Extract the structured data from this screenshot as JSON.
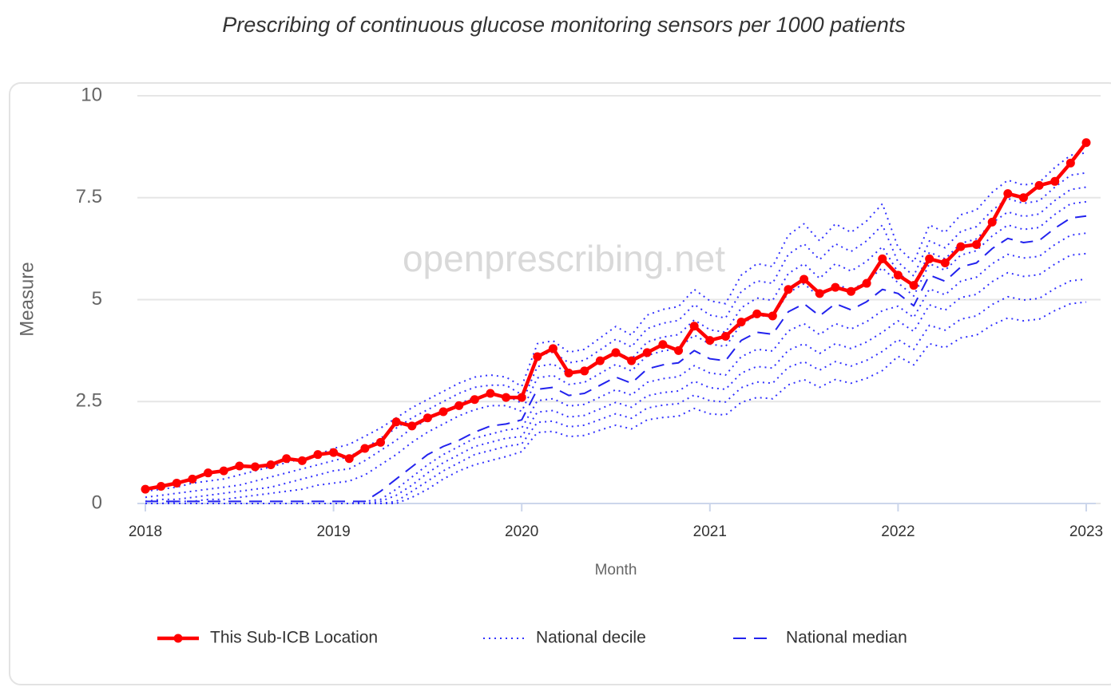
{
  "chart_data": {
    "type": "line",
    "title": "Prescribing of continuous glucose monitoring sensors per 1000 patients",
    "watermark": "openprescribing.net",
    "x_label": "Month",
    "y_label": "Measure",
    "x": [
      "2018-01",
      "2018-02",
      "2018-03",
      "2018-04",
      "2018-05",
      "2018-06",
      "2018-07",
      "2018-08",
      "2018-09",
      "2018-10",
      "2018-11",
      "2018-12",
      "2019-01",
      "2019-02",
      "2019-03",
      "2019-04",
      "2019-05",
      "2019-06",
      "2019-07",
      "2019-08",
      "2019-09",
      "2019-10",
      "2019-11",
      "2019-12",
      "2020-01",
      "2020-02",
      "2020-03",
      "2020-04",
      "2020-05",
      "2020-06",
      "2020-07",
      "2020-08",
      "2020-09",
      "2020-10",
      "2020-11",
      "2020-12",
      "2021-01",
      "2021-02",
      "2021-03",
      "2021-04",
      "2021-05",
      "2021-06",
      "2021-07",
      "2021-08",
      "2021-09",
      "2021-10",
      "2021-11",
      "2021-12",
      "2022-01",
      "2022-02",
      "2022-03",
      "2022-04",
      "2022-05",
      "2022-06",
      "2022-07",
      "2022-08",
      "2022-09",
      "2022-10",
      "2022-11",
      "2022-12",
      "2023-01"
    ],
    "xticks": [
      {
        "value": "2018-01",
        "label": "2018"
      },
      {
        "value": "2019-01",
        "label": "2019"
      },
      {
        "value": "2020-01",
        "label": "2020"
      },
      {
        "value": "2021-01",
        "label": "2021"
      },
      {
        "value": "2022-01",
        "label": "2022"
      },
      {
        "value": "2023-01",
        "label": "2023"
      }
    ],
    "ylim": [
      0,
      10
    ],
    "yticks": [
      0,
      {
        "value": 2.5,
        "label": "2.5"
      },
      5,
      {
        "value": 7.5,
        "label": "7.5"
      },
      10
    ],
    "grid": true,
    "legend": "bottom",
    "series": [
      {
        "name": "This Sub-ICB Location",
        "color": "#ff0000",
        "style": "solid",
        "markers": true,
        "values": [
          0.35,
          0.42,
          0.5,
          0.6,
          0.75,
          0.8,
          0.92,
          0.9,
          0.95,
          1.1,
          1.05,
          1.2,
          1.25,
          1.1,
          1.35,
          1.5,
          2.0,
          1.9,
          2.1,
          2.25,
          2.4,
          2.55,
          2.7,
          2.6,
          2.6,
          3.6,
          3.8,
          3.2,
          3.25,
          3.5,
          3.7,
          3.5,
          3.7,
          3.9,
          3.75,
          4.35,
          4.0,
          4.1,
          4.45,
          4.65,
          4.6,
          5.25,
          5.5,
          5.15,
          5.3,
          5.2,
          5.4,
          6.0,
          5.6,
          5.35,
          6.0,
          5.9,
          6.3,
          6.35,
          6.9,
          7.6,
          7.5,
          7.8,
          7.9,
          8.35,
          8.85
        ]
      },
      {
        "name": "National decile",
        "color": "#3333ff",
        "style": "dotted",
        "values": [
          0,
          0,
          0,
          0,
          0,
          0,
          0,
          0,
          0,
          0,
          0,
          0,
          0,
          0,
          0,
          0,
          0,
          0.15,
          0.35,
          0.6,
          0.8,
          0.95,
          1.05,
          1.15,
          1.27,
          1.74,
          1.77,
          1.64,
          1.67,
          1.8,
          1.92,
          1.83,
          2.05,
          2.11,
          2.14,
          2.33,
          2.2,
          2.17,
          2.48,
          2.6,
          2.57,
          2.91,
          3.04,
          2.85,
          3.04,
          2.95,
          3.07,
          3.26,
          3.61,
          3.4,
          3.92,
          3.82,
          4.06,
          4.13,
          4.38,
          4.55,
          4.48,
          4.52,
          4.73,
          4.9,
          4.94
        ]
      },
      {
        "name": "National decile",
        "color": "#3333ff",
        "style": "dotted",
        "values": [
          0,
          0,
          0,
          0,
          0,
          0,
          0,
          0,
          0,
          0,
          0,
          0,
          0,
          0,
          0,
          0,
          0.05,
          0.3,
          0.55,
          0.8,
          1.0,
          1.2,
          1.3,
          1.4,
          1.46,
          1.99,
          2.02,
          1.88,
          1.92,
          2.06,
          2.2,
          2.09,
          2.34,
          2.41,
          2.45,
          2.66,
          2.52,
          2.49,
          2.84,
          2.98,
          2.95,
          3.34,
          3.48,
          3.27,
          3.48,
          3.37,
          3.51,
          3.73,
          4.02,
          3.78,
          4.37,
          4.25,
          4.52,
          4.6,
          4.88,
          5.07,
          4.99,
          5.03,
          5.27,
          5.46,
          5.5
        ]
      },
      {
        "name": "National decile",
        "color": "#3333ff",
        "style": "dotted",
        "values": [
          0,
          0,
          0,
          0,
          0,
          0,
          0,
          0,
          0,
          0,
          0,
          0,
          0,
          0,
          0,
          0.05,
          0.2,
          0.45,
          0.75,
          1.0,
          1.2,
          1.4,
          1.5,
          1.6,
          1.64,
          2.24,
          2.28,
          2.12,
          2.16,
          2.32,
          2.48,
          2.36,
          2.64,
          2.72,
          2.76,
          3.0,
          2.84,
          2.8,
          3.2,
          3.36,
          3.32,
          3.76,
          3.92,
          3.68,
          3.92,
          3.8,
          3.96,
          4.2,
          4.48,
          4.22,
          4.87,
          4.74,
          5.05,
          5.13,
          5.44,
          5.66,
          5.57,
          5.61,
          5.87,
          6.09,
          6.13
        ]
      },
      {
        "name": "National decile",
        "color": "#3333ff",
        "style": "dotted",
        "values": [
          0,
          0,
          0,
          0,
          0,
          0,
          0,
          0,
          0,
          0,
          0,
          0,
          0,
          0,
          0.05,
          0.1,
          0.35,
          0.65,
          0.95,
          1.2,
          1.4,
          1.6,
          1.7,
          1.8,
          1.85,
          2.52,
          2.57,
          2.39,
          2.43,
          2.61,
          2.79,
          2.66,
          2.97,
          3.06,
          3.11,
          3.38,
          3.2,
          3.15,
          3.6,
          3.78,
          3.74,
          4.23,
          4.41,
          4.14,
          4.41,
          4.28,
          4.46,
          4.73,
          4.84,
          4.56,
          5.26,
          5.12,
          5.45,
          5.55,
          5.88,
          6.11,
          6.02,
          6.06,
          6.35,
          6.58,
          6.63
        ]
      },
      {
        "name": "National decile",
        "color": "#3333ff",
        "style": "dotted",
        "values": [
          0,
          0,
          0.05,
          0.05,
          0.1,
          0.1,
          0.15,
          0.2,
          0.25,
          0.3,
          0.35,
          0.45,
          0.5,
          0.55,
          0.7,
          0.95,
          1.2,
          1.5,
          1.75,
          1.95,
          2.15,
          2.3,
          2.4,
          2.4,
          2.26,
          3.08,
          3.14,
          2.92,
          2.97,
          3.19,
          3.41,
          3.25,
          3.63,
          3.74,
          3.8,
          4.13,
          3.91,
          3.85,
          4.4,
          4.62,
          4.57,
          5.17,
          5.39,
          5.06,
          5.39,
          5.23,
          5.45,
          5.78,
          5.41,
          5.09,
          5.88,
          5.72,
          6.09,
          6.2,
          6.56,
          6.83,
          6.72,
          6.77,
          7.09,
          7.35,
          7.4
        ]
      },
      {
        "name": "National decile",
        "color": "#3333ff",
        "style": "dotted",
        "values": [
          0.05,
          0.1,
          0.1,
          0.15,
          0.2,
          0.25,
          0.3,
          0.35,
          0.4,
          0.5,
          0.6,
          0.7,
          0.8,
          0.85,
          1.05,
          1.3,
          1.55,
          1.85,
          2.05,
          2.25,
          2.45,
          2.6,
          2.65,
          2.65,
          2.46,
          3.36,
          3.42,
          3.18,
          3.24,
          3.48,
          3.72,
          3.54,
          3.96,
          4.08,
          4.14,
          4.5,
          4.26,
          4.2,
          4.8,
          5.04,
          4.98,
          5.64,
          5.88,
          5.52,
          5.88,
          5.7,
          5.94,
          6.3,
          5.67,
          5.34,
          6.16,
          6.0,
          6.38,
          6.49,
          6.88,
          7.15,
          7.04,
          7.1,
          7.43,
          7.7,
          7.76
        ]
      },
      {
        "name": "National decile",
        "color": "#3333ff",
        "style": "dotted",
        "values": [
          0.15,
          0.2,
          0.25,
          0.3,
          0.35,
          0.4,
          0.45,
          0.55,
          0.65,
          0.75,
          0.85,
          0.95,
          1.05,
          1.15,
          1.35,
          1.6,
          1.85,
          2.1,
          2.3,
          2.5,
          2.7,
          2.85,
          2.9,
          2.9,
          2.67,
          3.64,
          3.71,
          3.45,
          3.51,
          3.77,
          4.03,
          3.84,
          4.29,
          4.42,
          4.49,
          4.88,
          4.62,
          4.55,
          5.2,
          5.46,
          5.4,
          6.11,
          6.37,
          5.98,
          6.37,
          6.18,
          6.44,
          6.83,
          5.92,
          5.58,
          6.44,
          6.27,
          6.67,
          6.79,
          7.19,
          7.48,
          7.36,
          7.42,
          7.76,
          8.05,
          8.11
        ]
      },
      {
        "name": "National decile",
        "color": "#3333ff",
        "style": "dotted",
        "values": [
          0.3,
          0.35,
          0.4,
          0.5,
          0.55,
          0.6,
          0.7,
          0.8,
          0.9,
          1.0,
          1.1,
          1.2,
          1.35,
          1.45,
          1.65,
          1.85,
          2.1,
          2.35,
          2.55,
          2.75,
          2.95,
          3.1,
          3.15,
          3.1,
          2.87,
          3.92,
          3.99,
          3.71,
          3.78,
          4.06,
          4.34,
          4.13,
          4.62,
          4.76,
          4.83,
          5.25,
          4.97,
          4.9,
          5.6,
          5.88,
          5.81,
          6.58,
          6.86,
          6.44,
          6.86,
          6.65,
          6.93,
          7.35,
          6.28,
          5.92,
          6.83,
          6.65,
          7.08,
          7.2,
          7.63,
          7.93,
          7.81,
          7.87,
          8.24,
          8.54,
          8.6
        ]
      },
      {
        "name": "National median",
        "color": "#2222ee",
        "style": "dashed",
        "values": [
          0.05,
          0.05,
          0.05,
          0.05,
          0.05,
          0.05,
          0.05,
          0.05,
          0.05,
          0.05,
          0.05,
          0.05,
          0.05,
          0.05,
          0.05,
          0.3,
          0.6,
          0.9,
          1.2,
          1.4,
          1.55,
          1.75,
          1.9,
          1.95,
          2.05,
          2.8,
          2.85,
          2.65,
          2.7,
          2.9,
          3.1,
          2.95,
          3.3,
          3.4,
          3.45,
          3.75,
          3.55,
          3.5,
          4.0,
          4.2,
          4.15,
          4.7,
          4.9,
          4.6,
          4.9,
          4.75,
          4.95,
          5.25,
          5.15,
          4.85,
          5.6,
          5.45,
          5.8,
          5.9,
          6.25,
          6.5,
          6.4,
          6.45,
          6.75,
          7.0,
          7.05
        ]
      }
    ]
  }
}
